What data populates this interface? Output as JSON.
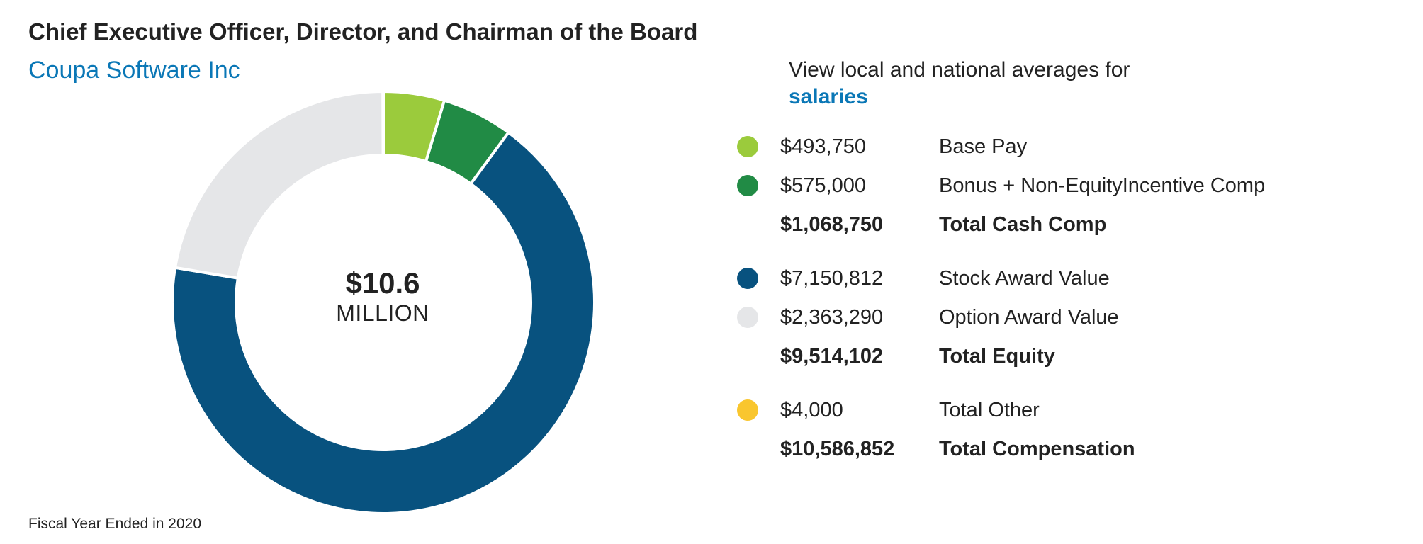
{
  "header": {
    "title": "Chief Executive Officer, Director, and Chairman of the Board",
    "company": "Coupa Software Inc"
  },
  "center": {
    "value": "$10.6",
    "unit": "MILLION"
  },
  "averages": {
    "text": "View local and national averages for",
    "link": "salaries"
  },
  "footnote": "Fiscal Year Ended in 2020",
  "legend": [
    {
      "amount": "$493,750",
      "label": "Base Pay",
      "color": "#9bcb3c",
      "bold": false
    },
    {
      "amount": "$575,000",
      "label": "Bonus + Non-EquityIncentive Comp",
      "color": "#218b45",
      "bold": false
    },
    {
      "amount": "$1,068,750",
      "label": "Total Cash Comp",
      "color": "",
      "bold": true
    },
    {
      "amount": "$7,150,812",
      "label": "Stock Award Value",
      "color": "#08527f",
      "bold": false
    },
    {
      "amount": "$2,363,290",
      "label": "Option Award Value",
      "color": "#e5e6e8",
      "bold": false
    },
    {
      "amount": "$9,514,102",
      "label": "Total Equity",
      "color": "",
      "bold": true
    },
    {
      "amount": "$4,000",
      "label": "Total Other",
      "color": "#f9c62e",
      "bold": false
    },
    {
      "amount": "$10,586,852",
      "label": "Total Compensation",
      "color": "",
      "bold": true
    }
  ],
  "chart_data": {
    "type": "pie",
    "style": "donut",
    "title": "Chief Executive Officer, Director, and Chairman of the Board",
    "categories": [
      "Base Pay",
      "Bonus + Non-EquityIncentive Comp",
      "Stock Award Value",
      "Option Award Value",
      "Total Other"
    ],
    "values": [
      493750,
      575000,
      7150812,
      2363290,
      4000
    ],
    "colors": [
      "#9bcb3c",
      "#218b45",
      "#08527f",
      "#e5e6e8",
      "#f9c62e"
    ],
    "total": 10586852,
    "center_label": "$10.6 MILLION"
  }
}
